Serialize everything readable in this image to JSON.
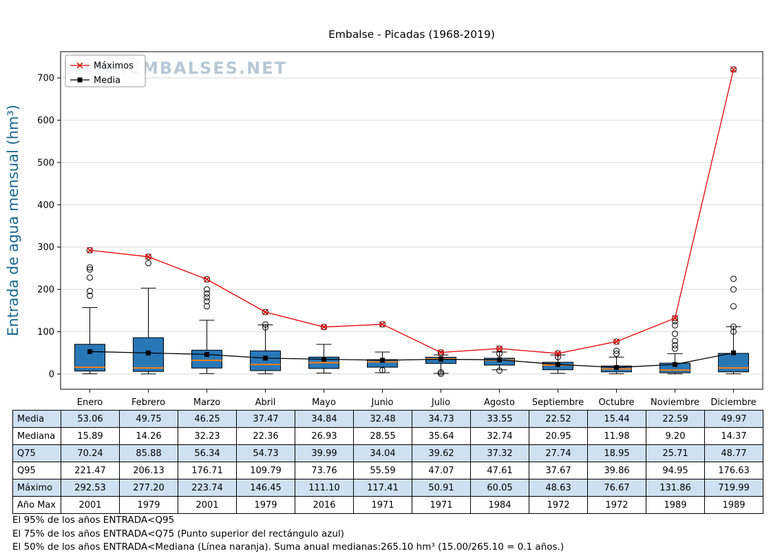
{
  "watermark": "WWW.EMBALSES.NET",
  "chart_data": {
    "type": "boxplot",
    "title": "Embalse - Picadas (1968-2019)",
    "ylabel": "Entrada de agua mensual (hm³)",
    "ylim": [
      -36,
      762
    ],
    "yticks": [
      0,
      100,
      200,
      300,
      400,
      500,
      600,
      700
    ],
    "grid": true,
    "legend_position": "upper-left",
    "categories": [
      "Enero",
      "Febrero",
      "Marzo",
      "Abril",
      "Mayo",
      "Junio",
      "Julio",
      "Agosto",
      "Septiembre",
      "Octubre",
      "Noviembre",
      "Diciembre"
    ],
    "series": [
      {
        "name": "Máximos",
        "marker": "x",
        "color": "#e60000",
        "values": [
          292.53,
          277.2,
          223.74,
          146.45,
          111.1,
          117.41,
          50.91,
          60.05,
          48.63,
          76.67,
          131.86,
          719.99
        ]
      },
      {
        "name": "Media",
        "marker": "square",
        "color": "#000000",
        "values": [
          53.06,
          49.75,
          46.25,
          37.47,
          34.84,
          32.48,
          34.73,
          33.55,
          22.52,
          15.44,
          22.59,
          49.97
        ]
      }
    ],
    "boxplot": {
      "box_fill": "#2878b8",
      "median_color": "#ff7f0e",
      "median": [
        15.89,
        14.26,
        32.23,
        22.36,
        26.93,
        28.55,
        35.64,
        32.74,
        20.95,
        11.98,
        9.2,
        14.37
      ],
      "q25": [
        7,
        6,
        14,
        8,
        13,
        16,
        25,
        21,
        10,
        5,
        3,
        5
      ],
      "q75": [
        70.24,
        85.88,
        56.34,
        54.73,
        39.99,
        34.04,
        39.62,
        37.32,
        27.74,
        18.95,
        25.71,
        48.77
      ],
      "q95": [
        221.47,
        206.13,
        176.71,
        109.79,
        73.76,
        55.59,
        47.07,
        47.61,
        37.67,
        39.86,
        94.95,
        176.63
      ],
      "whisker_low": [
        0.5,
        0.3,
        1,
        0.5,
        2,
        3,
        1.5,
        10,
        1.5,
        0.5,
        0.2,
        0.5
      ],
      "whisker_high": [
        157,
        203,
        127,
        116,
        70,
        52,
        45,
        52,
        45,
        40,
        48,
        112
      ],
      "outliers": [
        [
          185,
          196,
          228,
          247,
          252,
          292.53
        ],
        [
          262,
          277.2
        ],
        [
          160,
          172,
          181,
          190,
          200,
          223.74
        ],
        [
          110,
          117,
          146.45
        ],
        [
          111.1
        ],
        [
          9,
          117.41
        ],
        [
          0.5,
          4,
          47,
          50.91
        ],
        [
          8,
          48,
          60.05
        ],
        [
          40,
          48.63
        ],
        [
          48,
          55,
          76.67
        ],
        [
          60,
          68,
          78,
          95,
          115,
          125,
          131.86
        ],
        [
          100,
          112,
          160,
          200,
          225,
          719.99
        ]
      ]
    }
  },
  "table": {
    "shaded_color": "#cfe0f3",
    "rows": [
      {
        "label": "Media",
        "values": [
          "53.06",
          "49.75",
          "46.25",
          "37.47",
          "34.84",
          "32.48",
          "34.73",
          "33.55",
          "22.52",
          "15.44",
          "22.59",
          "49.97"
        ]
      },
      {
        "label": "Mediana",
        "values": [
          "15.89",
          "14.26",
          "32.23",
          "22.36",
          "26.93",
          "28.55",
          "35.64",
          "32.74",
          "20.95",
          "11.98",
          "9.20",
          "14.37"
        ]
      },
      {
        "label": "Q75",
        "values": [
          "70.24",
          "85.88",
          "56.34",
          "54.73",
          "39.99",
          "34.04",
          "39.62",
          "37.32",
          "27.74",
          "18.95",
          "25.71",
          "48.77"
        ]
      },
      {
        "label": "Q95",
        "values": [
          "221.47",
          "206.13",
          "176.71",
          "109.79",
          "73.76",
          "55.59",
          "47.07",
          "47.61",
          "37.67",
          "39.86",
          "94.95",
          "176.63"
        ]
      },
      {
        "label": "Máximo",
        "values": [
          "292.53",
          "277.20",
          "223.74",
          "146.45",
          "111.10",
          "117.41",
          "50.91",
          "60.05",
          "48.63",
          "76.67",
          "131.86",
          "719.99"
        ]
      },
      {
        "label": "Año Max",
        "values": [
          "2001",
          "1979",
          "2001",
          "1979",
          "2016",
          "1971",
          "1971",
          "1984",
          "1972",
          "1972",
          "1989",
          "1989"
        ]
      }
    ]
  },
  "footnotes": [
    "El 95% de los años ENTRADA<Q95",
    "El 75% de los años ENTRADA<Q75 (Punto superior del rectángulo azul)",
    "El 50% de los años ENTRADA<Mediana (Línea naranja). Suma anual medianas:265.10 hm³ (15.00/265.10 = 0.1 años.)"
  ]
}
